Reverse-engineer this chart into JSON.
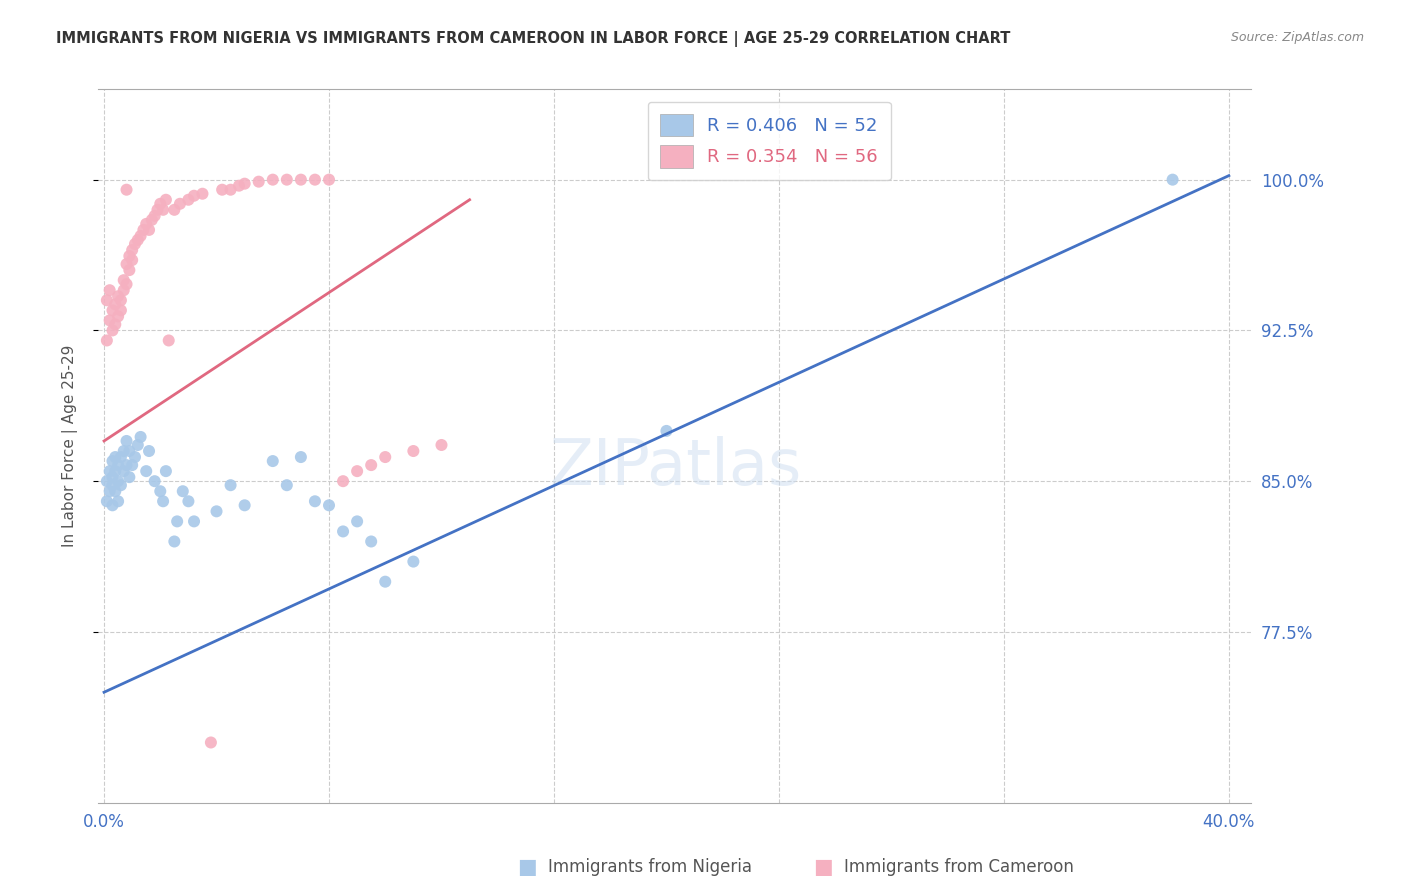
{
  "title": "IMMIGRANTS FROM NIGERIA VS IMMIGRANTS FROM CAMEROON IN LABOR FORCE | AGE 25-29 CORRELATION CHART",
  "source": "Source: ZipAtlas.com",
  "ylabel": "In Labor Force | Age 25-29",
  "xlim_min": -0.002,
  "xlim_max": 0.408,
  "ylim_min": 0.69,
  "ylim_max": 1.045,
  "yticks": [
    0.775,
    0.85,
    0.925,
    1.0
  ],
  "ytick_labels": [
    "77.5%",
    "85.0%",
    "92.5%",
    "100.0%"
  ],
  "xticks": [
    0.0,
    0.08,
    0.16,
    0.24,
    0.32,
    0.4
  ],
  "xtick_labels_show": [
    "0.0%",
    "",
    "",
    "",
    "",
    "40.0%"
  ],
  "nigeria_color": "#a8c8e8",
  "cameroon_color": "#f5b0c0",
  "nigeria_line_color": "#4472c4",
  "cameroon_line_color": "#e06880",
  "nigeria_R": 0.406,
  "nigeria_N": 52,
  "cameroon_R": 0.354,
  "cameroon_N": 56,
  "watermark_text": "ZIPatlas",
  "nigeria_x": [
    0.001,
    0.001,
    0.002,
    0.002,
    0.003,
    0.003,
    0.003,
    0.003,
    0.004,
    0.004,
    0.004,
    0.005,
    0.005,
    0.005,
    0.006,
    0.006,
    0.007,
    0.007,
    0.008,
    0.008,
    0.009,
    0.009,
    0.01,
    0.011,
    0.012,
    0.013,
    0.015,
    0.016,
    0.018,
    0.02,
    0.021,
    0.022,
    0.025,
    0.026,
    0.028,
    0.03,
    0.032,
    0.04,
    0.045,
    0.05,
    0.06,
    0.065,
    0.07,
    0.075,
    0.08,
    0.085,
    0.09,
    0.095,
    0.1,
    0.11,
    0.2,
    0.38
  ],
  "nigeria_y": [
    0.84,
    0.85,
    0.845,
    0.855,
    0.848,
    0.852,
    0.838,
    0.86,
    0.845,
    0.855,
    0.862,
    0.85,
    0.84,
    0.858,
    0.848,
    0.862,
    0.855,
    0.865,
    0.858,
    0.87,
    0.852,
    0.865,
    0.858,
    0.862,
    0.868,
    0.872,
    0.855,
    0.865,
    0.85,
    0.845,
    0.84,
    0.855,
    0.82,
    0.83,
    0.845,
    0.84,
    0.83,
    0.835,
    0.848,
    0.838,
    0.86,
    0.848,
    0.862,
    0.84,
    0.838,
    0.825,
    0.83,
    0.82,
    0.8,
    0.81,
    0.875,
    1.0
  ],
  "cameroon_x": [
    0.001,
    0.001,
    0.002,
    0.002,
    0.003,
    0.003,
    0.004,
    0.004,
    0.005,
    0.005,
    0.006,
    0.006,
    0.007,
    0.007,
    0.008,
    0.008,
    0.009,
    0.009,
    0.01,
    0.01,
    0.011,
    0.012,
    0.013,
    0.014,
    0.015,
    0.016,
    0.017,
    0.018,
    0.019,
    0.02,
    0.021,
    0.022,
    0.023,
    0.025,
    0.027,
    0.03,
    0.032,
    0.035,
    0.038,
    0.042,
    0.045,
    0.048,
    0.05,
    0.055,
    0.06,
    0.065,
    0.07,
    0.075,
    0.08,
    0.085,
    0.09,
    0.095,
    0.1,
    0.11,
    0.12,
    0.008
  ],
  "cameroon_y": [
    0.92,
    0.94,
    0.93,
    0.945,
    0.935,
    0.925,
    0.928,
    0.938,
    0.932,
    0.942,
    0.935,
    0.94,
    0.945,
    0.95,
    0.948,
    0.958,
    0.955,
    0.962,
    0.96,
    0.965,
    0.968,
    0.97,
    0.972,
    0.975,
    0.978,
    0.975,
    0.98,
    0.982,
    0.985,
    0.988,
    0.985,
    0.99,
    0.92,
    0.985,
    0.988,
    0.99,
    0.992,
    0.993,
    0.72,
    0.995,
    0.995,
    0.997,
    0.998,
    0.999,
    1.0,
    1.0,
    1.0,
    1.0,
    1.0,
    0.85,
    0.855,
    0.858,
    0.862,
    0.865,
    0.868,
    0.995
  ],
  "nigeria_line_x0": 0.0,
  "nigeria_line_x1": 0.4,
  "nigeria_line_y0": 0.745,
  "nigeria_line_y1": 1.002,
  "cameroon_line_x0": 0.0,
  "cameroon_line_x1": 0.13,
  "cameroon_line_y0": 0.87,
  "cameroon_line_y1": 0.99
}
